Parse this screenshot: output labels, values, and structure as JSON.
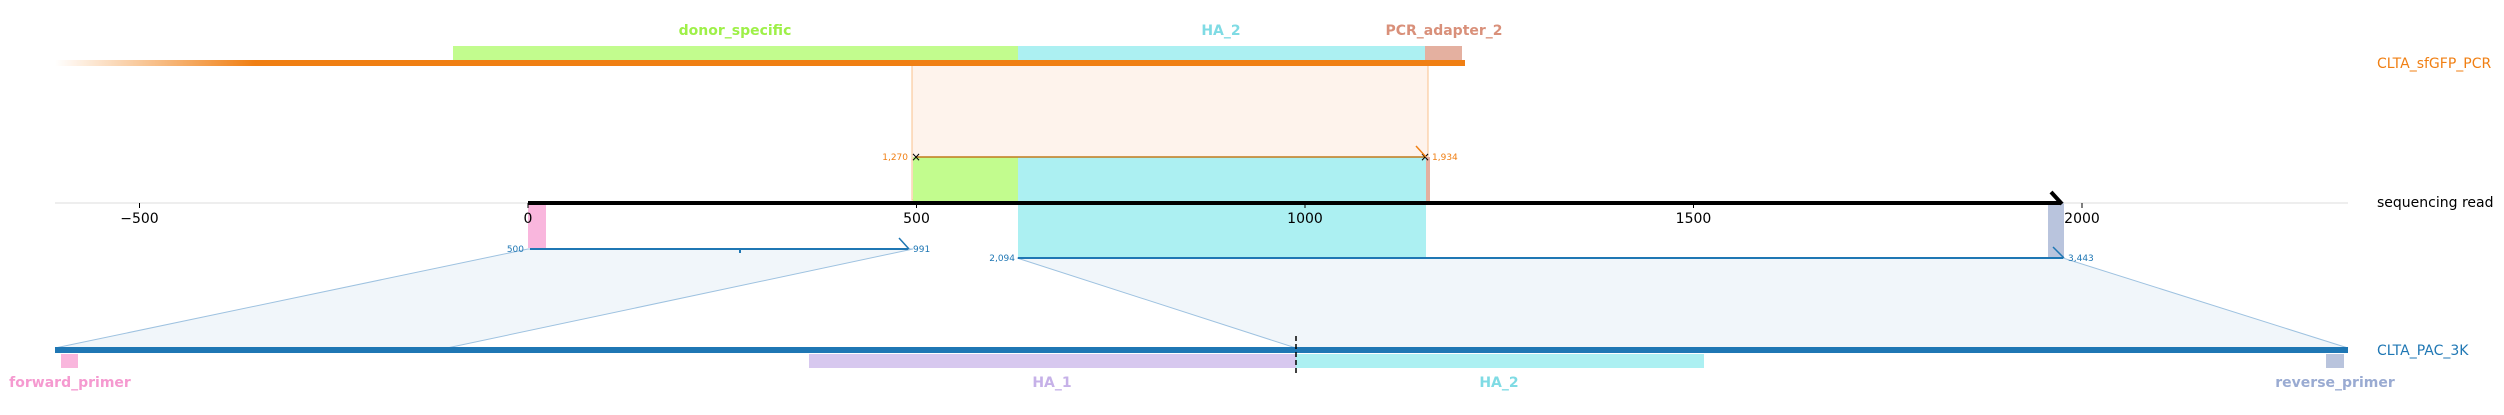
{
  "tracks": {
    "top": {
      "name": "CLTA_sfGFP_PCR",
      "color": "#f07f13"
    },
    "middle": {
      "name": "sequencing read",
      "color": "#000000"
    },
    "bottom": {
      "name": "CLTA_PAC_3K",
      "color": "#1f77b4"
    }
  },
  "axis": {
    "range": [
      -610,
      2360
    ],
    "ticks": [
      -500,
      0,
      500,
      1000,
      1500,
      2000
    ],
    "tick_labels": [
      "−500",
      "0",
      "500",
      "1000",
      "1500",
      "2000"
    ]
  },
  "top_features": [
    {
      "name": "donor_specific",
      "color": "#c2fc8e",
      "label_color": "#9ef048",
      "start": -100,
      "end": 630
    },
    {
      "name": "HA_2",
      "color": "#acf0f2",
      "label_color": "#7fdbe4",
      "start": 630,
      "end": 1157
    },
    {
      "name": "PCR_adapter_2",
      "color": "#e4b0a0",
      "label_color": "#d9907a",
      "start": 1157,
      "end": 1205
    }
  ],
  "read_features": [
    {
      "start": 0,
      "end": 22,
      "color": "#f9b6dd"
    },
    {
      "start": 500,
      "end": 630,
      "color": "#c2fc8e"
    },
    {
      "start": 630,
      "end": 1157,
      "color": "#acf0f2"
    },
    {
      "start": 1157,
      "end": 1162,
      "color": "#e4b0a0"
    },
    {
      "start": 1970,
      "end": 1990,
      "color": "#b9c4dd"
    }
  ],
  "alignments": [
    {
      "read_start": 500,
      "read_end": 1934,
      "query_start_label": "1,270",
      "query_end_label": "1,934",
      "color": "#f07f13"
    },
    {
      "read_start": 0,
      "read_end": 491,
      "ref_start_label": "500",
      "ref_end_label": "991",
      "color": "#1f77b4"
    },
    {
      "read_start": 630,
      "read_end": 1990,
      "ref_start_label": "2,094",
      "ref_end_label": "3,443",
      "color": "#1f77b4"
    }
  ],
  "bottom_features": [
    {
      "name": "forward_primer",
      "color": "#f9b6dd",
      "label_color": "#f59ad0"
    },
    {
      "name": "HA_1",
      "color": "#d7c8ef",
      "label_color": "#c6b1e8"
    },
    {
      "name": "HA_2",
      "color": "#acf0f2",
      "label_color": "#7fdbe4"
    },
    {
      "name": "reverse_primer",
      "color": "#b9c4dd",
      "label_color": "#9aabd2"
    }
  ]
}
